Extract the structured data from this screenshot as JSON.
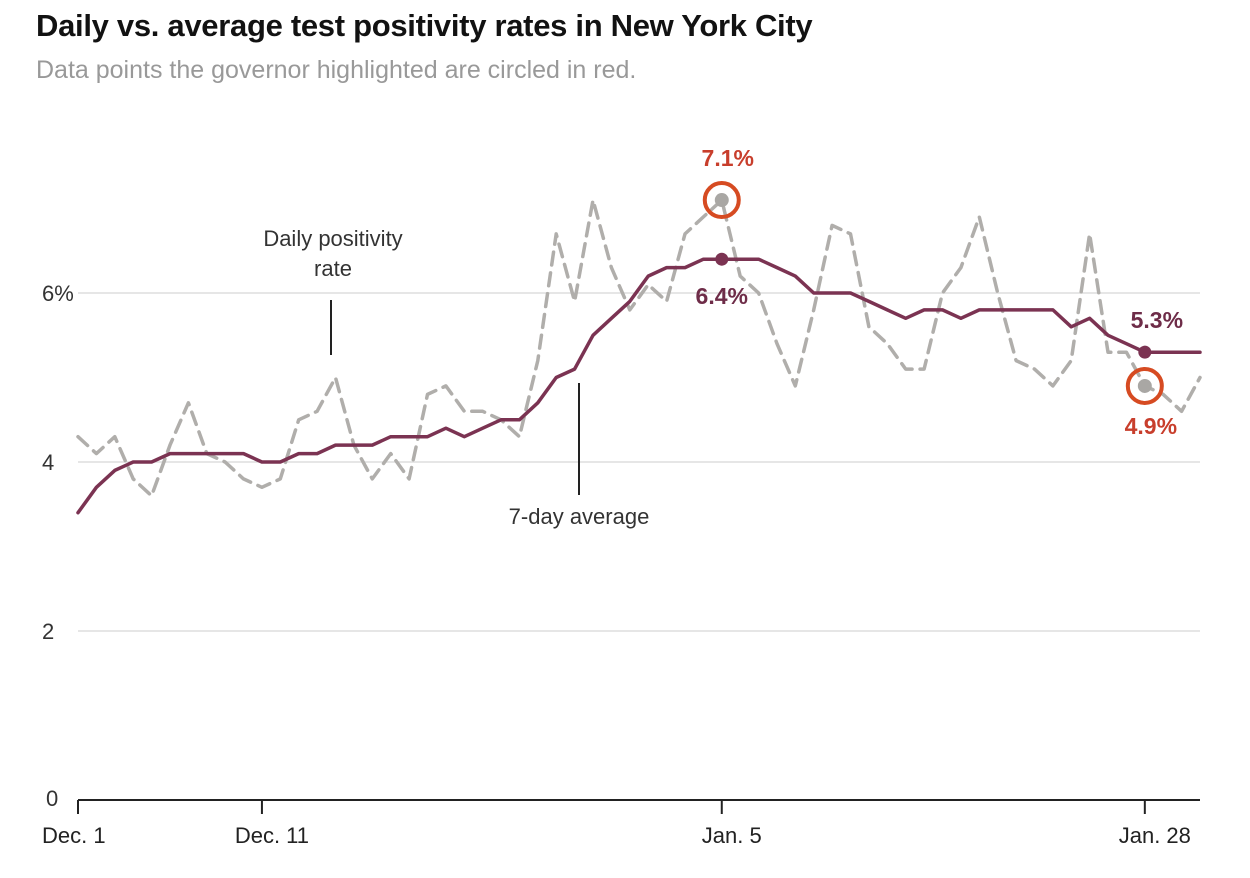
{
  "chart_data": {
    "type": "line",
    "title": "Daily vs. average test positivity rates in New York City",
    "subtitle": "Data points the governor highlighted are circled in red.",
    "xlabel": "",
    "ylabel": "",
    "ylim": [
      0,
      8
    ],
    "x_range": [
      1,
      62
    ],
    "x_ticks": [
      {
        "x": 1,
        "label": "Dec. 1"
      },
      {
        "x": 11,
        "label": "Dec. 11"
      },
      {
        "x": 36,
        "label": "Jan. 5"
      },
      {
        "x": 59,
        "label": "Jan. 28"
      }
    ],
    "y_ticks": [
      {
        "y": 0,
        "label": "0"
      },
      {
        "y": 2,
        "label": "2"
      },
      {
        "y": 4,
        "label": "4"
      },
      {
        "y": 6,
        "label": "6%"
      }
    ],
    "grid": true,
    "series": [
      {
        "name": "Daily positivity rate",
        "style": "dashed",
        "color": "#b0aeab",
        "x": [
          1,
          2,
          3,
          4,
          5,
          6,
          7,
          8,
          9,
          10,
          11,
          12,
          13,
          14,
          15,
          16,
          17,
          18,
          19,
          20,
          21,
          22,
          23,
          24,
          25,
          26,
          27,
          28,
          29,
          30,
          31,
          32,
          33,
          34,
          35,
          36,
          37,
          38,
          39,
          40,
          41,
          42,
          43,
          44,
          45,
          46,
          47,
          48,
          49,
          50,
          51,
          52,
          53,
          54,
          55,
          56,
          57,
          58,
          59,
          60,
          61,
          62
        ],
        "values": [
          4.3,
          4.1,
          4.3,
          3.8,
          3.6,
          4.2,
          4.7,
          4.1,
          4.0,
          3.8,
          3.7,
          3.8,
          4.5,
          4.6,
          5.0,
          4.2,
          3.8,
          4.1,
          3.8,
          4.8,
          4.9,
          4.6,
          4.6,
          4.5,
          4.3,
          5.2,
          6.7,
          5.9,
          7.1,
          6.3,
          5.8,
          6.1,
          5.9,
          6.7,
          6.9,
          7.1,
          6.2,
          6.0,
          5.4,
          4.9,
          5.8,
          6.8,
          6.7,
          5.6,
          5.4,
          5.1,
          5.1,
          6.0,
          6.3,
          6.9,
          6.0,
          5.2,
          5.1,
          4.9,
          5.2,
          6.7,
          5.3,
          5.3,
          4.9,
          4.8,
          4.6,
          5.0
        ]
      },
      {
        "name": "7-day average",
        "style": "solid",
        "color": "#7b3352",
        "x": [
          1,
          2,
          3,
          4,
          5,
          6,
          7,
          8,
          9,
          10,
          11,
          12,
          13,
          14,
          15,
          16,
          17,
          18,
          19,
          20,
          21,
          22,
          23,
          24,
          25,
          26,
          27,
          28,
          29,
          30,
          31,
          32,
          33,
          34,
          35,
          36,
          37,
          38,
          39,
          40,
          41,
          42,
          43,
          44,
          45,
          46,
          47,
          48,
          49,
          50,
          51,
          52,
          53,
          54,
          55,
          56,
          57,
          58,
          59,
          60,
          61,
          62
        ],
        "values": [
          3.4,
          3.7,
          3.9,
          4.0,
          4.0,
          4.1,
          4.1,
          4.1,
          4.1,
          4.1,
          4.0,
          4.0,
          4.1,
          4.1,
          4.2,
          4.2,
          4.2,
          4.3,
          4.3,
          4.3,
          4.4,
          4.3,
          4.4,
          4.5,
          4.5,
          4.7,
          5.0,
          5.1,
          5.5,
          5.7,
          5.9,
          6.2,
          6.3,
          6.3,
          6.4,
          6.4,
          6.4,
          6.4,
          6.3,
          6.2,
          6.0,
          6.0,
          6.0,
          5.9,
          5.8,
          5.7,
          5.8,
          5.8,
          5.7,
          5.8,
          5.8,
          5.8,
          5.8,
          5.8,
          5.6,
          5.7,
          5.5,
          5.4,
          5.3,
          5.3,
          5.3,
          5.3
        ]
      }
    ],
    "series_labels": {
      "daily": [
        "Daily positivity",
        "rate"
      ],
      "average": "7-day average"
    },
    "highlights": [
      {
        "series": "Daily positivity rate",
        "x": 36,
        "y": 7.1,
        "label": "7.1%",
        "circled": true
      },
      {
        "series": "7-day average",
        "x": 36,
        "y": 6.4,
        "label": "6.4%",
        "circled": false
      },
      {
        "series": "7-day average",
        "x": 59,
        "y": 5.3,
        "label": "5.3%",
        "circled": false
      },
      {
        "series": "Daily positivity rate",
        "x": 59,
        "y": 4.9,
        "label": "4.9%",
        "circled": true
      }
    ],
    "colors": {
      "highlight_ring": "#d64b22",
      "highlight_text": "#c83e2c",
      "average_text": "#6e2c48",
      "grid": "#dddddd",
      "axis": "#222222",
      "point_daily": "#a9a7a4"
    }
  }
}
